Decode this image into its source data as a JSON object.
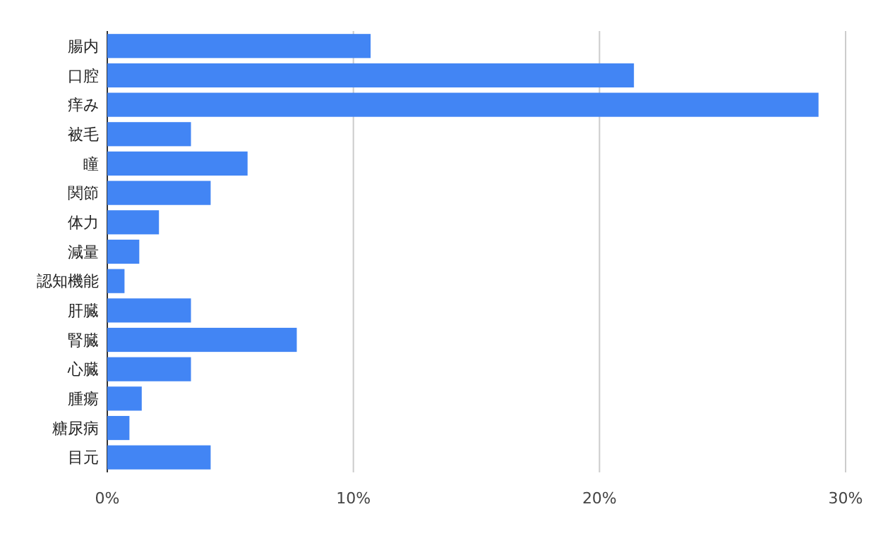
{
  "chart_data": {
    "type": "bar",
    "orientation": "horizontal",
    "categories": [
      "腸内",
      "口腔",
      "痒み",
      "被毛",
      "瞳",
      "関節",
      "体力",
      "減量",
      "認知機能",
      "肝臓",
      "腎臓",
      "心臓",
      "腫瘍",
      "糖尿病",
      "目元"
    ],
    "values": [
      10.7,
      21.4,
      28.9,
      3.4,
      5.7,
      4.2,
      2.1,
      1.3,
      0.7,
      3.4,
      7.7,
      3.4,
      1.4,
      0.9,
      4.2
    ],
    "color": "#4285f4",
    "xlim": [
      0,
      30
    ],
    "xticks": [
      {
        "value": 0,
        "label": "0%"
      },
      {
        "value": 10,
        "label": "10%"
      },
      {
        "value": 20,
        "label": "20%"
      },
      {
        "value": 30,
        "label": "30%"
      }
    ],
    "grid": "x"
  }
}
